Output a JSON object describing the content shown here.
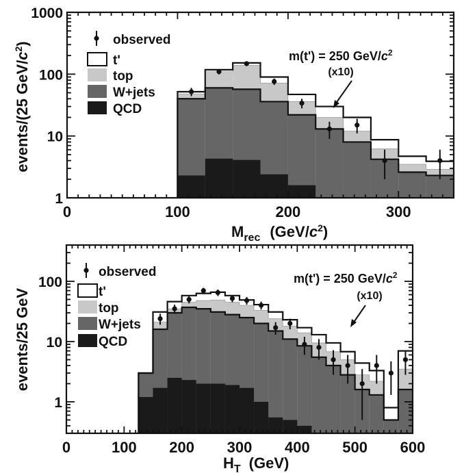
{
  "chart_data": [
    {
      "type": "area",
      "subtype": "stacked-histogram-log",
      "xlabel": "M",
      "xlabel_sub": "rec",
      "xlabel_units": "(GeV/",
      "xlabel_units_italic": "c",
      "xlabel_units_sup": "2",
      "xlabel_units_end": ")",
      "ylabel": "events/(25 GeV/",
      "ylabel_italic": "c",
      "ylabel_sup": "2",
      "ylabel_end": ")",
      "xlim": [
        0,
        350
      ],
      "ylim": [
        1,
        1000
      ],
      "log_y": true,
      "x_ticks": [
        0,
        100,
        200,
        300
      ],
      "y_ticks": [
        1,
        10,
        100,
        1000
      ],
      "legend": {
        "placement": "top-left",
        "entries": [
          "observed",
          "t'",
          "top",
          "W+jets",
          "QCD"
        ]
      },
      "annotation": {
        "line1": "m(t') = 250 GeV/",
        "line1_italic": "c",
        "line1_sup": "2",
        "line2": "(x10)"
      },
      "bin_edges": [
        100,
        125,
        150,
        175,
        200,
        225,
        250,
        275,
        300,
        325,
        350
      ],
      "series": [
        {
          "name": "QCD",
          "color": "#1a1a1a",
          "values": [
            2.3,
            4.3,
            4.1,
            2.4,
            1.6,
            null,
            null,
            null,
            null,
            null
          ]
        },
        {
          "name": "W+jets",
          "color": "#666666",
          "values": [
            40,
            60,
            57,
            36,
            22,
            13,
            8,
            4.2,
            2.6,
            2.3
          ]
        },
        {
          "name": "top",
          "color": "#c8c8c8",
          "values": [
            48,
            110,
            140,
            72,
            36,
            20,
            12,
            6.2,
            3.5,
            2.9
          ]
        },
        {
          "name": "t'",
          "color": "#ffffff",
          "values": [
            52,
            118,
            152,
            90,
            47,
            30,
            20,
            8.7,
            4.7,
            3.9
          ]
        }
      ],
      "observed": {
        "x": [
          112.5,
          137.5,
          162.5,
          187.5,
          212.5,
          237.5,
          262.5,
          287.5,
          312.5,
          337.5
        ],
        "y": [
          52,
          110,
          148,
          76,
          34,
          13,
          15,
          4,
          null,
          4
        ],
        "err": [
          8,
          11,
          13,
          9,
          6,
          4,
          4,
          2,
          null,
          2
        ]
      }
    },
    {
      "type": "area",
      "subtype": "stacked-histogram-log",
      "xlabel": "H",
      "xlabel_sub": "T",
      "xlabel_units": "(GeV)",
      "ylabel": "events/25 GeV",
      "xlim": [
        0,
        600
      ],
      "ylim": [
        0.3,
        400
      ],
      "log_y": true,
      "x_ticks": [
        0,
        100,
        200,
        300,
        400,
        500,
        600
      ],
      "y_ticks": [
        1,
        10,
        100
      ],
      "legend": {
        "placement": "top-left",
        "entries": [
          "observed",
          "t'",
          "top",
          "W+jets",
          "QCD"
        ]
      },
      "annotation": {
        "line1": "m(t') = 250 GeV/",
        "line1_italic": "c",
        "line1_sup": "2",
        "line2": "(x10)"
      },
      "bin_edges": [
        125,
        150,
        175,
        200,
        225,
        250,
        275,
        300,
        325,
        350,
        375,
        400,
        425,
        450,
        475,
        500,
        525,
        550,
        575,
        600
      ],
      "series": [
        {
          "name": "QCD",
          "color": "#1a1a1a",
          "values": [
            1.2,
            1.7,
            2.5,
            2.3,
            2.0,
            2.0,
            1.9,
            1.7,
            1.0,
            0.55,
            0.5,
            0.4,
            null,
            null,
            null,
            null,
            null,
            null,
            null
          ]
        },
        {
          "name": "W+jets",
          "color": "#666666",
          "values": [
            3.0,
            16,
            30,
            37,
            35,
            31,
            28,
            25,
            20,
            15,
            11,
            8.5,
            5.5,
            4.0,
            2.8,
            1.6,
            1.3,
            0.5,
            1.6
          ]
        },
        {
          "name": "top",
          "color": "#c8c8c8",
          "values": [
            3.0,
            21,
            35,
            45,
            48,
            49,
            45,
            40,
            33,
            24,
            18,
            14,
            9.5,
            6.8,
            5.0,
            2.8,
            2.2,
            0.5,
            3.5
          ]
        },
        {
          "name": "t'",
          "color": "#ffffff",
          "values": [
            3.0,
            31,
            46,
            58,
            63,
            66,
            58,
            49,
            41,
            31,
            23,
            17,
            13,
            9.5,
            6.8,
            4.4,
            3.3,
            0.8,
            7.0
          ]
        }
      ],
      "observed": {
        "x": [
          162.5,
          187.5,
          212.5,
          237.5,
          262.5,
          287.5,
          312.5,
          337.5,
          362.5,
          387.5,
          412.5,
          437.5,
          462.5,
          487.5,
          512.5,
          537.5,
          562.5,
          587.5
        ],
        "y": [
          24,
          35,
          50,
          70,
          65,
          52,
          48,
          40,
          17,
          20,
          9,
          8,
          5,
          4,
          2,
          4,
          3,
          5
        ],
        "err": [
          5,
          6,
          7,
          8,
          8,
          7,
          7,
          6,
          4,
          4,
          3,
          3,
          2.2,
          2,
          1.5,
          2,
          1.7,
          2.2
        ]
      }
    }
  ]
}
